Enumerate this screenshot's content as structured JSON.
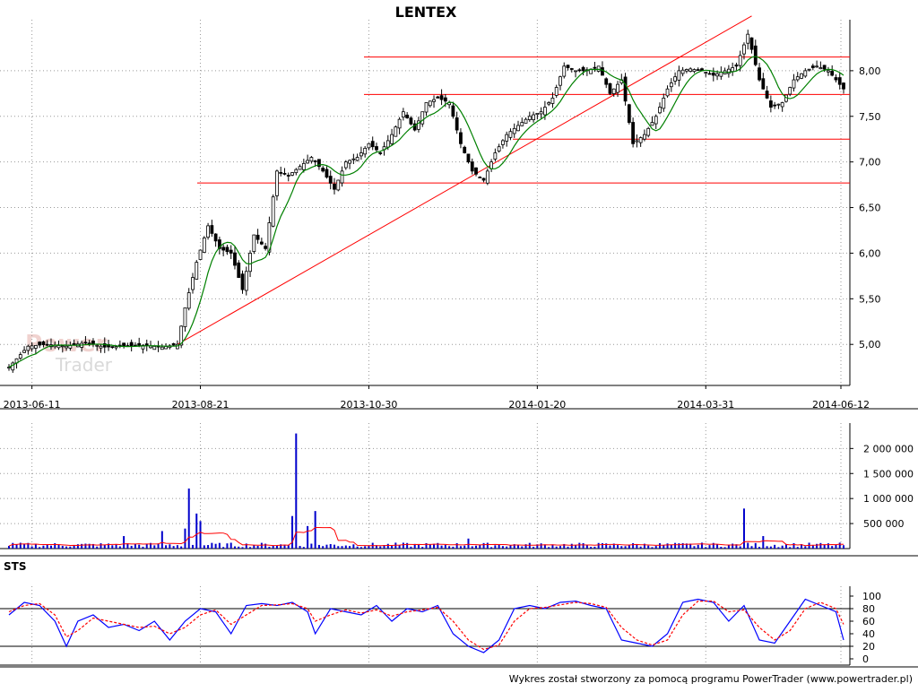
{
  "title": "LENTEX",
  "footer": "Wykres został stworzony za pomocą programu PowerTrader (www.powertrader.pl)",
  "watermark": {
    "line1": "Power",
    "line2": "Trader"
  },
  "colors": {
    "candle": "#000000",
    "ma": "#008000",
    "trendline": "#ff0000",
    "volume": "#0000cc",
    "volume_ma": "#ff0000",
    "sts_k": "#0000ff",
    "sts_d": "#ff0000",
    "grid": "#999999"
  },
  "chart_data": [
    {
      "type": "candlestick",
      "title": "LENTEX",
      "x_ticks": [
        "2013-06-11",
        "2013-08-21",
        "2013-10-30",
        "2014-01-20",
        "2014-03-31",
        "2014-06-12"
      ],
      "y_ticks": [
        "5,00",
        "5,50",
        "6,00",
        "6,50",
        "7,00",
        "7,50",
        "8,00"
      ],
      "ylim": [
        4.55,
        8.5
      ],
      "grid": true,
      "close_path": [
        [
          0,
          4.75
        ],
        [
          5,
          4.98
        ],
        [
          10,
          5.0
        ],
        [
          15,
          4.98
        ],
        [
          20,
          5.02
        ],
        [
          25,
          4.97
        ],
        [
          30,
          4.98
        ],
        [
          35,
          4.99
        ],
        [
          40,
          4.97
        ],
        [
          44,
          5.0
        ],
        [
          46,
          5.4
        ],
        [
          49,
          5.9
        ],
        [
          52,
          6.3
        ],
        [
          55,
          6.05
        ],
        [
          58,
          6.0
        ],
        [
          61,
          5.6
        ],
        [
          64,
          6.2
        ],
        [
          67,
          6.05
        ],
        [
          70,
          6.9
        ],
        [
          73,
          6.85
        ],
        [
          76,
          6.95
        ],
        [
          79,
          7.05
        ],
        [
          82,
          6.9
        ],
        [
          85,
          6.7
        ],
        [
          88,
          7.0
        ],
        [
          91,
          7.05
        ],
        [
          94,
          7.2
        ],
        [
          97,
          7.1
        ],
        [
          100,
          7.3
        ],
        [
          103,
          7.55
        ],
        [
          106,
          7.35
        ],
        [
          109,
          7.65
        ],
        [
          112,
          7.7
        ],
        [
          115,
          7.65
        ],
        [
          118,
          7.2
        ],
        [
          121,
          6.9
        ],
        [
          124,
          6.8
        ],
        [
          127,
          7.1
        ],
        [
          130,
          7.3
        ],
        [
          133,
          7.4
        ],
        [
          136,
          7.5
        ],
        [
          139,
          7.55
        ],
        [
          142,
          7.7
        ],
        [
          145,
          8.05
        ],
        [
          148,
          8.0
        ],
        [
          151,
          8.0
        ],
        [
          154,
          8.05
        ],
        [
          157,
          7.75
        ],
        [
          160,
          7.9
        ],
        [
          163,
          7.2
        ],
        [
          166,
          7.3
        ],
        [
          169,
          7.5
        ],
        [
          172,
          7.8
        ],
        [
          175,
          8.0
        ],
        [
          178,
          8.02
        ],
        [
          181,
          8.0
        ],
        [
          184,
          7.95
        ],
        [
          187,
          8.0
        ],
        [
          190,
          8.05
        ],
        [
          193,
          8.4
        ],
        [
          196,
          7.9
        ],
        [
          199,
          7.6
        ],
        [
          202,
          7.65
        ],
        [
          205,
          7.9
        ],
        [
          208,
          8.0
        ],
        [
          211,
          8.05
        ],
        [
          214,
          8.0
        ],
        [
          218,
          7.8
        ]
      ],
      "moving_average": "green line smoothing the close",
      "horizontal_levels": [
        8.15,
        7.74,
        7.25,
        6.77
      ],
      "trendline": {
        "from": {
          "x_index": 44,
          "y": 5.0
        },
        "to": {
          "x_index": 194,
          "y": 8.6
        }
      }
    },
    {
      "type": "bar",
      "name": "volume",
      "y_ticks": [
        "500 000",
        "1 000 000",
        "1 500 000",
        "2 000 000"
      ],
      "ylim": [
        0,
        2400000
      ],
      "spikes": [
        {
          "x_index": 30,
          "value": 250000
        },
        {
          "x_index": 40,
          "value": 350000
        },
        {
          "x_index": 46,
          "value": 400000
        },
        {
          "x_index": 47,
          "value": 1200000
        },
        {
          "x_index": 49,
          "value": 700000
        },
        {
          "x_index": 50,
          "value": 550000
        },
        {
          "x_index": 74,
          "value": 650000
        },
        {
          "x_index": 75,
          "value": 2300000
        },
        {
          "x_index": 78,
          "value": 450000
        },
        {
          "x_index": 80,
          "value": 750000
        },
        {
          "x_index": 120,
          "value": 200000
        },
        {
          "x_index": 192,
          "value": 800000
        },
        {
          "x_index": 197,
          "value": 250000
        }
      ],
      "baseline_value": 70000,
      "moving_average": "red line",
      "grid": true
    },
    {
      "type": "line",
      "name": "STS",
      "label": "STS",
      "y_ticks": [
        "0",
        "20",
        "40",
        "60",
        "80",
        "100"
      ],
      "ylim": [
        0,
        100
      ],
      "reference_lines": [
        20,
        80
      ],
      "series": [
        {
          "name": "K",
          "points": [
            [
              0,
              70
            ],
            [
              4,
              90
            ],
            [
              8,
              85
            ],
            [
              12,
              60
            ],
            [
              15,
              20
            ],
            [
              18,
              60
            ],
            [
              22,
              70
            ],
            [
              26,
              50
            ],
            [
              30,
              55
            ],
            [
              34,
              45
            ],
            [
              38,
              60
            ],
            [
              42,
              30
            ],
            [
              46,
              60
            ],
            [
              50,
              80
            ],
            [
              54,
              75
            ],
            [
              58,
              40
            ],
            [
              62,
              85
            ],
            [
              66,
              88
            ],
            [
              70,
              85
            ],
            [
              74,
              90
            ],
            [
              78,
              75
            ],
            [
              80,
              40
            ],
            [
              84,
              80
            ],
            [
              88,
              75
            ],
            [
              92,
              70
            ],
            [
              96,
              85
            ],
            [
              100,
              60
            ],
            [
              104,
              80
            ],
            [
              108,
              75
            ],
            [
              112,
              85
            ],
            [
              116,
              40
            ],
            [
              120,
              20
            ],
            [
              124,
              10
            ],
            [
              128,
              30
            ],
            [
              132,
              80
            ],
            [
              136,
              85
            ],
            [
              140,
              80
            ],
            [
              144,
              90
            ],
            [
              148,
              92
            ],
            [
              152,
              85
            ],
            [
              156,
              80
            ],
            [
              160,
              30
            ],
            [
              164,
              25
            ],
            [
              168,
              20
            ],
            [
              172,
              40
            ],
            [
              176,
              90
            ],
            [
              180,
              95
            ],
            [
              184,
              90
            ],
            [
              188,
              60
            ],
            [
              192,
              85
            ],
            [
              196,
              30
            ],
            [
              200,
              25
            ],
            [
              204,
              60
            ],
            [
              208,
              95
            ],
            [
              212,
              85
            ],
            [
              216,
              75
            ],
            [
              218,
              30
            ]
          ]
        },
        {
          "name": "D",
          "points": [
            [
              0,
              75
            ],
            [
              4,
              85
            ],
            [
              8,
              88
            ],
            [
              12,
              70
            ],
            [
              15,
              35
            ],
            [
              18,
              45
            ],
            [
              22,
              65
            ],
            [
              26,
              60
            ],
            [
              30,
              55
            ],
            [
              34,
              50
            ],
            [
              38,
              52
            ],
            [
              42,
              40
            ],
            [
              46,
              50
            ],
            [
              50,
              70
            ],
            [
              54,
              78
            ],
            [
              58,
              55
            ],
            [
              62,
              70
            ],
            [
              66,
              85
            ],
            [
              70,
              86
            ],
            [
              74,
              88
            ],
            [
              78,
              80
            ],
            [
              80,
              60
            ],
            [
              84,
              70
            ],
            [
              88,
              78
            ],
            [
              92,
              73
            ],
            [
              96,
              78
            ],
            [
              100,
              68
            ],
            [
              104,
              75
            ],
            [
              108,
              78
            ],
            [
              112,
              82
            ],
            [
              116,
              60
            ],
            [
              120,
              30
            ],
            [
              124,
              15
            ],
            [
              128,
              22
            ],
            [
              132,
              60
            ],
            [
              136,
              80
            ],
            [
              140,
              82
            ],
            [
              144,
              86
            ],
            [
              148,
              90
            ],
            [
              152,
              88
            ],
            [
              156,
              82
            ],
            [
              160,
              50
            ],
            [
              164,
              30
            ],
            [
              168,
              22
            ],
            [
              172,
              30
            ],
            [
              176,
              70
            ],
            [
              180,
              92
            ],
            [
              184,
              92
            ],
            [
              188,
              75
            ],
            [
              192,
              78
            ],
            [
              196,
              50
            ],
            [
              200,
              30
            ],
            [
              204,
              45
            ],
            [
              208,
              80
            ],
            [
              212,
              90
            ],
            [
              216,
              80
            ],
            [
              218,
              55
            ]
          ]
        }
      ]
    }
  ]
}
